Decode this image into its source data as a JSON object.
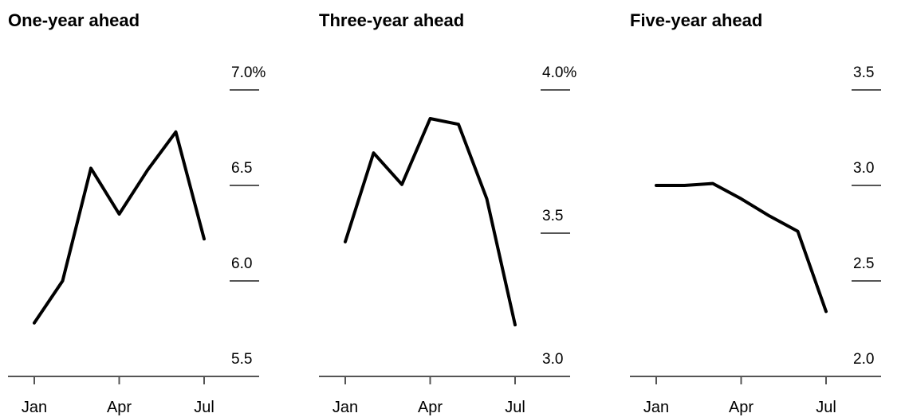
{
  "chart_data": [
    {
      "type": "line",
      "title": "One-year ahead",
      "categories": [
        "Jan",
        null,
        null,
        "Apr",
        null,
        null,
        "Jul"
      ],
      "values": [
        5.78,
        6.0,
        6.59,
        6.35,
        6.58,
        6.78,
        6.22
      ],
      "color": "#000000",
      "ylim": [
        5.5,
        7.0
      ],
      "yticks": [
        5.5,
        {
          "value": 6,
          "label": "6.0"
        },
        6.5,
        {
          "value": 7,
          "label": "7.0%"
        }
      ]
    },
    {
      "type": "line",
      "title": "Three-year ahead",
      "categories": [
        "Jan",
        null,
        null,
        "Apr",
        null,
        null,
        "Jul"
      ],
      "values": [
        3.47,
        3.78,
        3.67,
        3.9,
        3.88,
        3.62,
        3.18
      ],
      "color": "#000000",
      "ylim": [
        3.0,
        4.0
      ],
      "yticks": [
        {
          "value": 3,
          "label": "3.0"
        },
        3.5,
        {
          "value": 4,
          "label": "4.0%"
        }
      ]
    },
    {
      "type": "line",
      "title": "Five-year ahead",
      "categories": [
        "Jan",
        null,
        null,
        "Apr",
        null,
        null,
        "Jul"
      ],
      "values": [
        3.0,
        3.0,
        3.01,
        2.93,
        2.84,
        2.76,
        2.34
      ],
      "color": "#000000",
      "ylim": [
        2.0,
        3.5
      ],
      "yticks": [
        {
          "value": 2,
          "label": "2.0"
        },
        2.5,
        {
          "value": 3,
          "label": "3.0"
        },
        3.5
      ]
    }
  ]
}
